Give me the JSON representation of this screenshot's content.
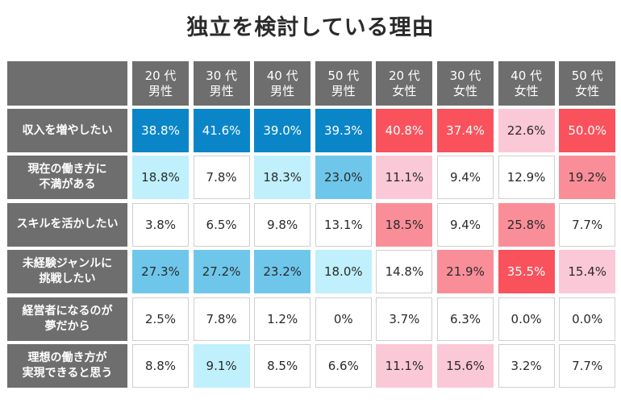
{
  "title": "独立を検討している理由",
  "colors": {
    "header_bg": "#6e6e6e",
    "blue_strong": "#0a86c8",
    "blue_mid": "#6ec7ea",
    "blue_light": "#bff0fb",
    "red_strong": "#f9525c",
    "red_mid": "#f98e98",
    "red_light": "#fbc8d8",
    "white": "#ffffff"
  },
  "chart_data": {
    "type": "table",
    "title": "独立を検討している理由",
    "columns": [
      {
        "age": "20代",
        "gender": "男性"
      },
      {
        "age": "30代",
        "gender": "男性"
      },
      {
        "age": "40代",
        "gender": "男性"
      },
      {
        "age": "50代",
        "gender": "男性"
      },
      {
        "age": "20代",
        "gender": "女性"
      },
      {
        "age": "30代",
        "gender": "女性"
      },
      {
        "age": "40代",
        "gender": "女性"
      },
      {
        "age": "50代",
        "gender": "女性"
      }
    ],
    "rows": [
      {
        "label": [
          "収入を増やしたい"
        ],
        "values": [
          "38.8%",
          "41.6%",
          "39.0%",
          "39.3%",
          "40.8%",
          "37.4%",
          "22.6%",
          "50.0%"
        ],
        "shade": [
          "blue_strong",
          "blue_strong",
          "blue_strong",
          "blue_strong",
          "red_strong",
          "red_strong",
          "red_light",
          "red_strong"
        ]
      },
      {
        "label": [
          "現在の働き方に",
          "不満がある"
        ],
        "values": [
          "18.8%",
          "7.8%",
          "18.3%",
          "23.0%",
          "11.1%",
          "9.4%",
          "12.9%",
          "19.2%"
        ],
        "shade": [
          "blue_light",
          "white",
          "blue_light",
          "blue_mid",
          "red_light",
          "white",
          "white",
          "red_mid"
        ]
      },
      {
        "label": [
          "スキルを活かしたい"
        ],
        "values": [
          "3.8%",
          "6.5%",
          "9.8%",
          "13.1%",
          "18.5%",
          "9.4%",
          "25.8%",
          "7.7%"
        ],
        "shade": [
          "white",
          "white",
          "white",
          "white",
          "red_mid",
          "white",
          "red_mid",
          "white"
        ]
      },
      {
        "label": [
          "未経験ジャンルに",
          "挑戦したい"
        ],
        "values": [
          "27.3%",
          "27.2%",
          "23.2%",
          "18.0%",
          "14.8%",
          "21.9%",
          "35.5%",
          "15.4%"
        ],
        "shade": [
          "blue_mid",
          "blue_mid",
          "blue_mid",
          "blue_light",
          "white",
          "red_mid",
          "red_strong",
          "red_light"
        ]
      },
      {
        "label": [
          "経営者になるのが",
          "夢だから"
        ],
        "values": [
          "2.5%",
          "7.8%",
          "1.2%",
          "0%",
          "3.7%",
          "6.3%",
          "0.0%",
          "0.0%"
        ],
        "shade": [
          "white",
          "white",
          "white",
          "white",
          "white",
          "white",
          "white",
          "white"
        ]
      },
      {
        "label": [
          "理想の働き方が",
          "実現できると思う"
        ],
        "values": [
          "8.8%",
          "9.1%",
          "8.5%",
          "6.6%",
          "11.1%",
          "15.6%",
          "3.2%",
          "7.7%"
        ],
        "shade": [
          "white",
          "blue_light",
          "white",
          "white",
          "red_light",
          "red_light",
          "white",
          "white"
        ]
      }
    ]
  }
}
